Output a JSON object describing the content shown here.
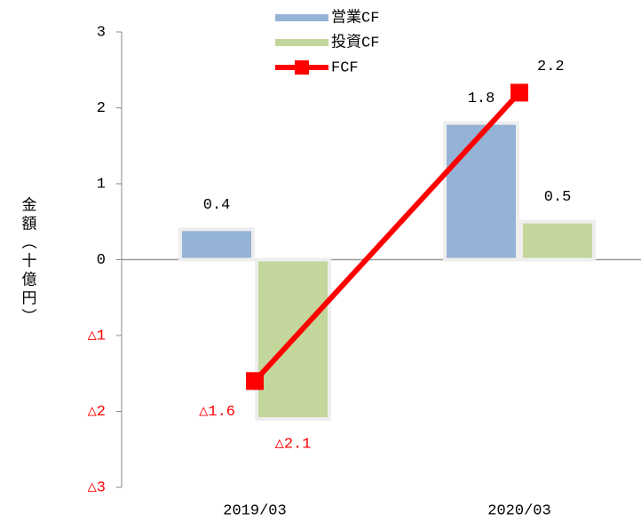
{
  "chart_data": {
    "type": "bar",
    "y_label": "金額（十億円）",
    "categories": [
      "2019/03",
      "2020/03"
    ],
    "series": [
      {
        "name": "営業CF",
        "color": "#95b3d7",
        "values": [
          0.4,
          1.8
        ],
        "value_labels": [
          "0.4",
          "1.8"
        ]
      },
      {
        "name": "投資CF",
        "color": "#c3d69b",
        "values": [
          -2.1,
          0.5
        ],
        "value_labels": [
          "△2.1",
          "0.5"
        ]
      },
      {
        "name": "FCF",
        "type": "line",
        "color": "#ff0000",
        "values": [
          -1.6,
          2.2
        ],
        "value_labels": [
          "△1.6",
          "2.2"
        ]
      }
    ],
    "ylim": [
      -3,
      3
    ],
    "yticks": [
      {
        "value": -3,
        "label": "△3"
      },
      {
        "value": -2,
        "label": "△2"
      },
      {
        "value": -1,
        "label": "△1"
      },
      0,
      1,
      2,
      3
    ],
    "negative_color": "#ff0000"
  }
}
